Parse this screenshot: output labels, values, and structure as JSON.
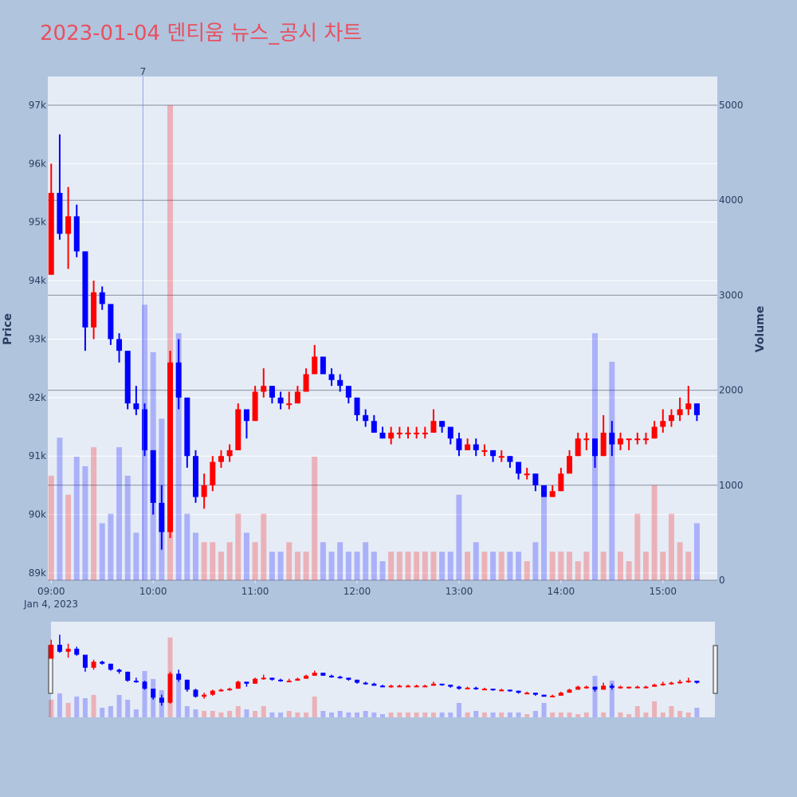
{
  "chart_data": {
    "type": "candlestick",
    "title": "2023-01-04 덴티움 뉴스_공시 차트",
    "y_title": "Price",
    "y2_title": "Volume",
    "x_date_label": "Jan 4, 2023",
    "increasing_color": "#ff0000",
    "decreasing_color": "#0000ff",
    "x": [
      "2023-01-04 09:00",
      "2023-01-04 09:05",
      "2023-01-04 09:10",
      "2023-01-04 09:15",
      "2023-01-04 09:20",
      "2023-01-04 09:25",
      "2023-01-04 09:30",
      "2023-01-04 09:35",
      "2023-01-04 09:40",
      "2023-01-04 09:45",
      "2023-01-04 09:50",
      "2023-01-04 09:55",
      "2023-01-04 10:00",
      "2023-01-04 10:05",
      "2023-01-04 10:10",
      "2023-01-04 10:15",
      "2023-01-04 10:20",
      "2023-01-04 10:25",
      "2023-01-04 10:30",
      "2023-01-04 10:35",
      "2023-01-04 10:40",
      "2023-01-04 10:45",
      "2023-01-04 10:50",
      "2023-01-04 10:55",
      "2023-01-04 11:00",
      "2023-01-04 11:05",
      "2023-01-04 11:10",
      "2023-01-04 11:15",
      "2023-01-04 11:20",
      "2023-01-04 11:25",
      "2023-01-04 11:30",
      "2023-01-04 11:35",
      "2023-01-04 11:40",
      "2023-01-04 11:45",
      "2023-01-04 11:50",
      "2023-01-04 11:55",
      "2023-01-04 12:00",
      "2023-01-04 12:05",
      "2023-01-04 12:10",
      "2023-01-04 12:15",
      "2023-01-04 12:20",
      "2023-01-04 12:25",
      "2023-01-04 12:30",
      "2023-01-04 12:35",
      "2023-01-04 12:40",
      "2023-01-04 12:45",
      "2023-01-04 12:50",
      "2023-01-04 12:55",
      "2023-01-04 13:00",
      "2023-01-04 13:05",
      "2023-01-04 13:10",
      "2023-01-04 13:15",
      "2023-01-04 13:20",
      "2023-01-04 13:25",
      "2023-01-04 13:30",
      "2023-01-04 13:35",
      "2023-01-04 13:40",
      "2023-01-04 13:45",
      "2023-01-04 13:50",
      "2023-01-04 13:55",
      "2023-01-04 14:00",
      "2023-01-04 14:05",
      "2023-01-04 14:10",
      "2023-01-04 14:15",
      "2023-01-04 14:20",
      "2023-01-04 14:25",
      "2023-01-04 14:30",
      "2023-01-04 14:35",
      "2023-01-04 14:40",
      "2023-01-04 14:45",
      "2023-01-04 14:50",
      "2023-01-04 14:55",
      "2023-01-04 15:00",
      "2023-01-04 15:05",
      "2023-01-04 15:10",
      "2023-01-04 15:15",
      "2023-01-04 15:20"
    ],
    "open": [
      94100,
      95500,
      94800,
      95100,
      94500,
      93200,
      93800,
      93600,
      93000,
      92800,
      91900,
      91800,
      91100,
      90200,
      89700,
      92600,
      92000,
      91000,
      90300,
      90500,
      90900,
      91000,
      91100,
      91800,
      91600,
      92100,
      92200,
      92000,
      91900,
      91900,
      92100,
      92400,
      92700,
      92400,
      92300,
      92200,
      92000,
      91700,
      91600,
      91400,
      91300,
      91400,
      91400,
      91400,
      91400,
      91400,
      91600,
      91500,
      91300,
      91100,
      91200,
      91100,
      91100,
      91000,
      91000,
      90900,
      90700,
      90700,
      90500,
      90300,
      90400,
      90700,
      91000,
      91300,
      91300,
      91000,
      91400,
      91200,
      91300,
      91300,
      91300,
      91300,
      91500,
      91600,
      91700,
      91800,
      91900
    ],
    "high": [
      96000,
      96500,
      95600,
      95300,
      94500,
      94000,
      93900,
      93600,
      93100,
      92800,
      92200,
      91900,
      91100,
      90500,
      92800,
      93000,
      92000,
      91100,
      90700,
      91000,
      91100,
      91200,
      91900,
      91800,
      92200,
      92500,
      92200,
      92100,
      92100,
      92200,
      92500,
      92900,
      92700,
      92500,
      92400,
      92200,
      92000,
      91800,
      91700,
      91500,
      91500,
      91500,
      91500,
      91500,
      91500,
      91800,
      91600,
      91500,
      91400,
      91300,
      91300,
      91200,
      91100,
      91100,
      91000,
      90900,
      90800,
      90700,
      90500,
      90500,
      90800,
      91100,
      91400,
      91400,
      91300,
      91700,
      91600,
      91400,
      91300,
      91400,
      91400,
      91600,
      91800,
      91800,
      92000,
      92200,
      91900
    ],
    "low": [
      94100,
      94700,
      94200,
      94400,
      92800,
      93000,
      93500,
      92900,
      92600,
      91800,
      91700,
      91000,
      90000,
      89400,
      89600,
      91800,
      90800,
      90200,
      90100,
      90400,
      90800,
      90900,
      91100,
      91300,
      91600,
      92000,
      91900,
      91800,
      91800,
      91900,
      92100,
      92400,
      92400,
      92200,
      92100,
      91900,
      91600,
      91500,
      91400,
      91300,
      91200,
      91300,
      91300,
      91300,
      91300,
      91400,
      91400,
      91200,
      91000,
      91100,
      91000,
      91000,
      90900,
      90900,
      90800,
      90600,
      90600,
      90400,
      90300,
      90300,
      90400,
      90700,
      91000,
      91100,
      90800,
      91000,
      91000,
      91100,
      91100,
      91200,
      91200,
      91300,
      91400,
      91500,
      91600,
      91700,
      91600
    ],
    "close": [
      95500,
      94800,
      95100,
      94500,
      93200,
      93800,
      93600,
      93000,
      92800,
      91900,
      91800,
      91100,
      90200,
      89700,
      92600,
      92000,
      91000,
      90300,
      90500,
      90900,
      91000,
      91100,
      91800,
      91600,
      92100,
      92200,
      92000,
      91900,
      91900,
      92100,
      92400,
      92700,
      92400,
      92300,
      92200,
      92000,
      91700,
      91600,
      91400,
      91300,
      91400,
      91400,
      91400,
      91400,
      91400,
      91600,
      91500,
      91300,
      91100,
      91200,
      91100,
      91100,
      91000,
      91000,
      90900,
      90700,
      90700,
      90500,
      90300,
      90400,
      90700,
      91000,
      91300,
      91300,
      91000,
      91400,
      91200,
      91300,
      91300,
      91300,
      91300,
      91500,
      91600,
      91700,
      91800,
      91900,
      91700
    ],
    "volume": [
      1100,
      1500,
      900,
      1300,
      1200,
      1400,
      600,
      700,
      1400,
      1100,
      500,
      2900,
      2400,
      1700,
      5000,
      2600,
      700,
      500,
      400,
      400,
      300,
      400,
      700,
      500,
      400,
      700,
      300,
      300,
      400,
      300,
      300,
      1300,
      400,
      300,
      400,
      300,
      300,
      400,
      300,
      200,
      300,
      300,
      300,
      300,
      300,
      300,
      300,
      300,
      900,
      300,
      400,
      300,
      300,
      300,
      300,
      300,
      200,
      400,
      900,
      300,
      300,
      300,
      200,
      300,
      2600,
      300,
      2300,
      300,
      200,
      700,
      300,
      1000,
      300,
      700,
      400,
      300,
      600
    ],
    "xlim": [
      "2023-01-04 08:58",
      "2023-01-04 15:32"
    ],
    "xticks": [
      {
        "value": "2023-01-04 09:00",
        "label": "09:00"
      },
      {
        "value": "2023-01-04 10:00",
        "label": "10:00"
      },
      {
        "value": "2023-01-04 11:00",
        "label": "11:00"
      },
      {
        "value": "2023-01-04 12:00",
        "label": "12:00"
      },
      {
        "value": "2023-01-04 13:00",
        "label": "13:00"
      },
      {
        "value": "2023-01-04 14:00",
        "label": "14:00"
      },
      {
        "value": "2023-01-04 15:00",
        "label": "15:00"
      }
    ],
    "ylim": [
      88877,
      97490
    ],
    "yticks": [
      {
        "value": 89000,
        "label": "89k"
      },
      {
        "value": 90000,
        "label": "90k"
      },
      {
        "value": 91000,
        "label": "91k"
      },
      {
        "value": 92000,
        "label": "92k"
      },
      {
        "value": 93000,
        "label": "93k"
      },
      {
        "value": 94000,
        "label": "94k"
      },
      {
        "value": 95000,
        "label": "95k"
      },
      {
        "value": 96000,
        "label": "96k"
      },
      {
        "value": 97000,
        "label": "97k"
      }
    ],
    "y2lim": [
      0,
      5302
    ],
    "y2ticks": [
      0,
      1000,
      2000,
      3000,
      4000,
      5000
    ],
    "annotations": [
      {
        "x": "2023-01-04 09:54",
        "text": "7"
      }
    ]
  }
}
